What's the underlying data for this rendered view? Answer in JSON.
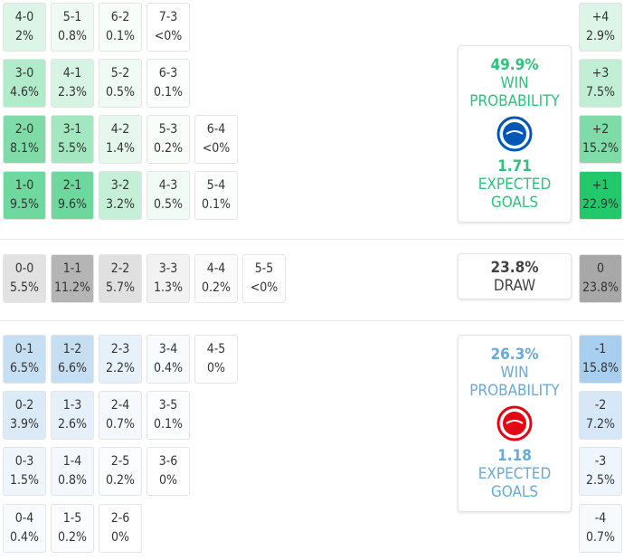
{
  "home": {
    "rows": [
      [
        {
          "score": "4-0",
          "pct": "2%",
          "bg": "#dcf5e7"
        },
        {
          "score": "5-1",
          "pct": "0.8%",
          "bg": "#eefaf3"
        },
        {
          "score": "6-2",
          "pct": "0.1%",
          "bg": "#f7fdf9"
        },
        {
          "score": "7-3",
          "pct": "<0%",
          "bg": "#ffffff"
        }
      ],
      [
        {
          "score": "3-0",
          "pct": "4.6%",
          "bg": "#b0ebca"
        },
        {
          "score": "4-1",
          "pct": "2.3%",
          "bg": "#d6f3e3"
        },
        {
          "score": "5-2",
          "pct": "0.5%",
          "bg": "#f1fbf5"
        },
        {
          "score": "6-3",
          "pct": "0.1%",
          "bg": "#fbfefc"
        }
      ],
      [
        {
          "score": "2-0",
          "pct": "8.1%",
          "bg": "#7fdca9"
        },
        {
          "score": "3-1",
          "pct": "5.5%",
          "bg": "#a3e7c1"
        },
        {
          "score": "4-2",
          "pct": "1.4%",
          "bg": "#e6f8ee"
        },
        {
          "score": "5-3",
          "pct": "0.2%",
          "bg": "#f8fdfa"
        },
        {
          "score": "6-4",
          "pct": "<0%",
          "bg": "#ffffff"
        }
      ],
      [
        {
          "score": "1-0",
          "pct": "9.5%",
          "bg": "#6fd89f"
        },
        {
          "score": "2-1",
          "pct": "9.6%",
          "bg": "#6dd79e"
        },
        {
          "score": "3-2",
          "pct": "3.2%",
          "bg": "#c6efd8"
        },
        {
          "score": "4-3",
          "pct": "0.5%",
          "bg": "#f1fbf5"
        },
        {
          "score": "5-4",
          "pct": "0.1%",
          "bg": "#fbfefc"
        }
      ]
    ],
    "margins": [
      {
        "score": "+4",
        "pct": "2.9%",
        "bg": "#dcf5e6"
      },
      {
        "score": "+3",
        "pct": "7.5%",
        "bg": "#c1eed4"
      },
      {
        "score": "+2",
        "pct": "15.2%",
        "bg": "#7fdca9"
      },
      {
        "score": "+1",
        "pct": "22.9%",
        "bg": "#22c96b"
      }
    ],
    "card": {
      "probability": "49.9%",
      "probability_label": "WIN PROBABILITY",
      "xg": "1.71",
      "xg_label": "EXPECTED GOALS",
      "color": "#2ec27e"
    }
  },
  "draw": {
    "rows": [
      [
        {
          "score": "0-0",
          "pct": "5.5%",
          "bg": "#e2e2e2"
        },
        {
          "score": "1-1",
          "pct": "11.2%",
          "bg": "#b5b5b5"
        },
        {
          "score": "2-2",
          "pct": "5.7%",
          "bg": "#e0e0e0"
        },
        {
          "score": "3-3",
          "pct": "1.3%",
          "bg": "#f2f2f2"
        },
        {
          "score": "4-4",
          "pct": "0.2%",
          "bg": "#fbfbfb"
        },
        {
          "score": "5-5",
          "pct": "<0%",
          "bg": "#ffffff"
        }
      ]
    ],
    "margins": [
      {
        "score": "0",
        "pct": "23.8%",
        "bg": "#a8a8a8"
      }
    ],
    "card": {
      "probability": "23.8%",
      "probability_label": "DRAW",
      "color": "#444444"
    }
  },
  "away": {
    "rows": [
      [
        {
          "score": "0-1",
          "pct": "6.5%",
          "bg": "#c7dff2"
        },
        {
          "score": "1-2",
          "pct": "6.6%",
          "bg": "#c5def2"
        },
        {
          "score": "2-3",
          "pct": "2.2%",
          "bg": "#e7f1fa"
        },
        {
          "score": "3-4",
          "pct": "0.4%",
          "bg": "#f8fbfe"
        },
        {
          "score": "4-5",
          "pct": "0%",
          "bg": "#ffffff"
        }
      ],
      [
        {
          "score": "0-2",
          "pct": "3.9%",
          "bg": "#dbeaf7"
        },
        {
          "score": "1-3",
          "pct": "2.6%",
          "bg": "#e5f0f9"
        },
        {
          "score": "2-4",
          "pct": "0.7%",
          "bg": "#f5f9fd"
        },
        {
          "score": "3-5",
          "pct": "0.1%",
          "bg": "#fcfdfe"
        }
      ],
      [
        {
          "score": "0-3",
          "pct": "1.5%",
          "bg": "#eef5fb"
        },
        {
          "score": "1-4",
          "pct": "0.8%",
          "bg": "#f4f8fc"
        },
        {
          "score": "2-5",
          "pct": "0.2%",
          "bg": "#fafcfe"
        },
        {
          "score": "3-6",
          "pct": "0%",
          "bg": "#ffffff"
        }
      ],
      [
        {
          "score": "0-4",
          "pct": "0.4%",
          "bg": "#f8fbfe"
        },
        {
          "score": "1-5",
          "pct": "0.2%",
          "bg": "#fafcfe"
        },
        {
          "score": "2-6",
          "pct": "0%",
          "bg": "#ffffff"
        }
      ]
    ],
    "margins": [
      {
        "score": "-1",
        "pct": "15.8%",
        "bg": "#a9cff0"
      },
      {
        "score": "-2",
        "pct": "7.2%",
        "bg": "#d6e8f7"
      },
      {
        "score": "-3",
        "pct": "2.5%",
        "bg": "#eef5fc"
      },
      {
        "score": "-4",
        "pct": "0.7%",
        "bg": "#f7fafd"
      }
    ],
    "card": {
      "probability": "26.3%",
      "probability_label": "WIN PROBABILITY",
      "xg": "1.18",
      "xg_label": "EXPECTED GOALS",
      "color": "#6aa9d8"
    }
  }
}
